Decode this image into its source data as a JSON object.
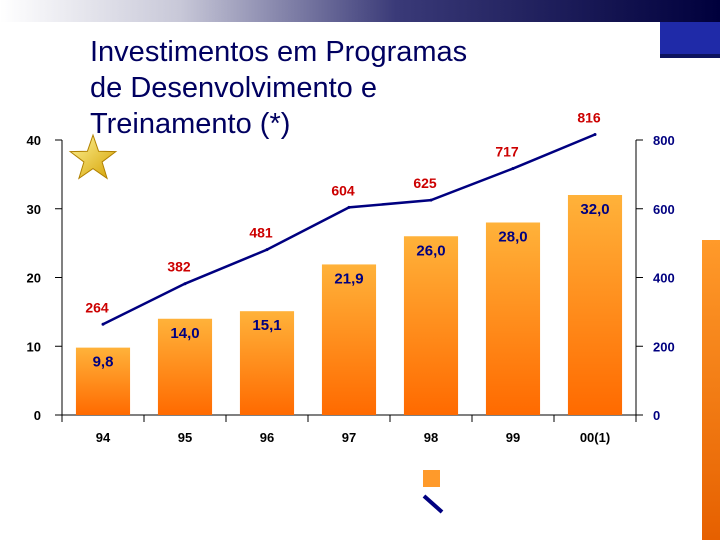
{
  "slide": {
    "title": "Investimentos em Programas\nde Desenvolvimento e\nTreinamento (*)",
    "star_icon": "star-icon",
    "colors": {
      "bar_fill": "#ff8c1a",
      "line": "#000080",
      "title": "#000060",
      "line_label": "#cc0000",
      "bar_label": "#000080"
    }
  },
  "chart_data": {
    "type": "bar",
    "categories": [
      "94",
      "95",
      "96",
      "97",
      "98",
      "99",
      "00(1)"
    ],
    "series": [
      {
        "axis": "left",
        "values": [
          9.8,
          14.0,
          15.1,
          21.9,
          26.0,
          28.0,
          32.0
        ],
        "labels": [
          "9,8",
          "14,0",
          "15,1",
          "21,9",
          "26,0",
          "28,0",
          "32,0"
        ]
      },
      {
        "axis": "right",
        "type": "line",
        "values": [
          264,
          382,
          481,
          604,
          625,
          717,
          816
        ],
        "labels": [
          "264",
          "382",
          "481",
          "604",
          "625",
          "717",
          "816"
        ]
      }
    ],
    "y_left": {
      "lim": [
        0,
        40
      ],
      "ticks": [
        "0",
        "10",
        "20",
        "30",
        "40"
      ]
    },
    "y_right": {
      "lim": [
        0,
        800
      ],
      "ticks": [
        "0",
        "200",
        "400",
        "600",
        "800"
      ]
    }
  }
}
